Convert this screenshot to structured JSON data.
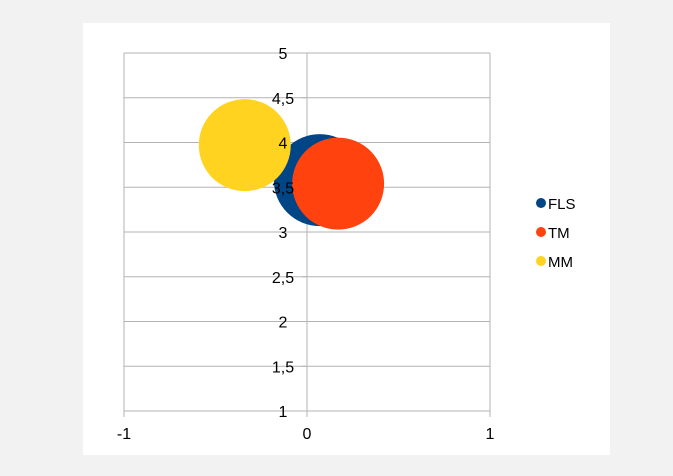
{
  "chart_data": {
    "type": "bubble",
    "title": "",
    "xlabel": "",
    "ylabel": "",
    "xlim": [
      -1,
      1
    ],
    "ylim": [
      1,
      5
    ],
    "x_ticks": [
      "-1",
      "0",
      "1"
    ],
    "y_ticks": [
      "1",
      "1,5",
      "2",
      "2,5",
      "3",
      "3,5",
      "4",
      "4,5",
      "5"
    ],
    "grid": true,
    "legend_position": "right",
    "series": [
      {
        "name": "FLS",
        "color": "#004586",
        "x": 0.07,
        "y": 3.58,
        "size": 1.0
      },
      {
        "name": "TM",
        "color": "#ff420e",
        "x": 0.17,
        "y": 3.54,
        "size": 1.0
      },
      {
        "name": "MM",
        "color": "#ffd320",
        "x": -0.34,
        "y": 3.97,
        "size": 1.0
      }
    ]
  }
}
